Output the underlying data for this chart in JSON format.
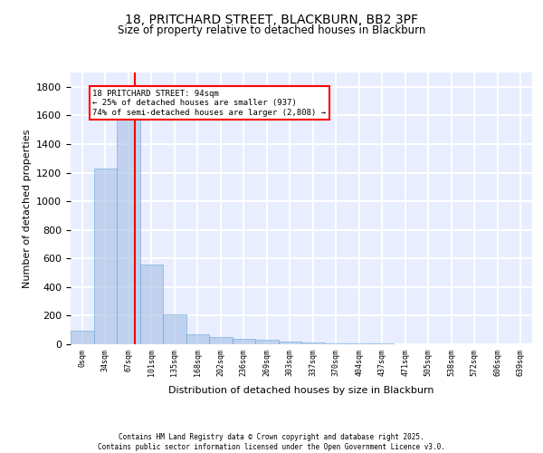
{
  "title": "18, PRITCHARD STREET, BLACKBURN, BB2 3PF",
  "subtitle": "Size of property relative to detached houses in Blackburn",
  "xlabel": "Distribution of detached houses by size in Blackburn",
  "ylabel": "Number of detached properties",
  "bar_values": [
    95,
    1230,
    1650,
    560,
    210,
    70,
    50,
    40,
    30,
    20,
    10,
    5,
    5,
    5,
    3,
    2,
    1,
    1,
    1,
    1
  ],
  "categories": [
    "0sqm",
    "34sqm",
    "67sqm",
    "101sqm",
    "135sqm",
    "168sqm",
    "202sqm",
    "236sqm",
    "269sqm",
    "303sqm",
    "337sqm",
    "370sqm",
    "404sqm",
    "437sqm",
    "471sqm",
    "505sqm",
    "538sqm",
    "572sqm",
    "606sqm",
    "639sqm"
  ],
  "bar_color": "#aec6e8",
  "bar_edge_color": "#5a9fd4",
  "bar_alpha": 0.7,
  "vline_x": 2.27,
  "vline_color": "red",
  "annotation_text": "18 PRITCHARD STREET: 94sqm\n← 25% of detached houses are smaller (937)\n74% of semi-detached houses are larger (2,808) →",
  "annotation_box_color": "white",
  "annotation_box_edge_color": "red",
  "ylim": [
    0,
    1900
  ],
  "yticks": [
    0,
    200,
    400,
    600,
    800,
    1000,
    1200,
    1400,
    1600,
    1800
  ],
  "background_color": "#e8eeff",
  "grid_color": "white",
  "footer_line1": "Contains HM Land Registry data © Crown copyright and database right 2025.",
  "footer_line2": "Contains public sector information licensed under the Open Government Licence v3.0."
}
